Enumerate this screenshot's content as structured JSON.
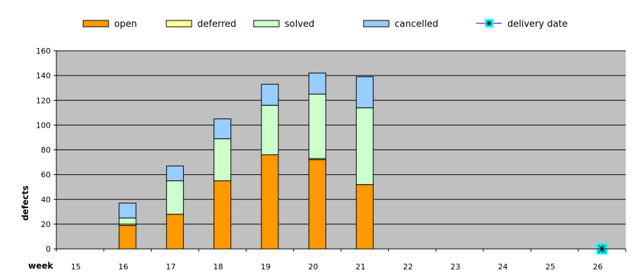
{
  "chart_data": {
    "type": "bar",
    "stacked": true,
    "categories": [
      "15",
      "16",
      "17",
      "18",
      "19",
      "20",
      "21",
      "22",
      "23",
      "24",
      "25",
      "26"
    ],
    "series": [
      {
        "name": "open",
        "color": "#FF9900",
        "values": [
          0,
          19,
          28,
          55,
          76,
          72,
          52,
          0,
          0,
          0,
          0,
          0
        ]
      },
      {
        "name": "deferred",
        "color": "#FFFF99",
        "values": [
          0,
          1,
          0,
          0,
          0,
          1,
          0,
          0,
          0,
          0,
          0,
          0
        ]
      },
      {
        "name": "solved",
        "color": "#CCFFCC",
        "values": [
          0,
          5,
          27,
          34,
          40,
          52,
          62,
          0,
          0,
          0,
          0,
          0
        ]
      },
      {
        "name": "cancelled",
        "color": "#99CCFF",
        "values": [
          0,
          12,
          12,
          16,
          17,
          17,
          25,
          0,
          0,
          0,
          0,
          0
        ]
      }
    ],
    "markers": [
      {
        "name": "delivery date",
        "category": "26",
        "value": 0,
        "symbol": "asterisk",
        "color": "#00FFFF",
        "line_color": "#9900CC"
      }
    ],
    "xlabel": "week",
    "ylabel": "defects",
    "ylim": [
      0,
      160
    ],
    "yticks": [
      0,
      20,
      40,
      60,
      80,
      100,
      120,
      140,
      160
    ],
    "grid": true,
    "plot_background": "#C0C0C0",
    "legend_position": "top"
  }
}
